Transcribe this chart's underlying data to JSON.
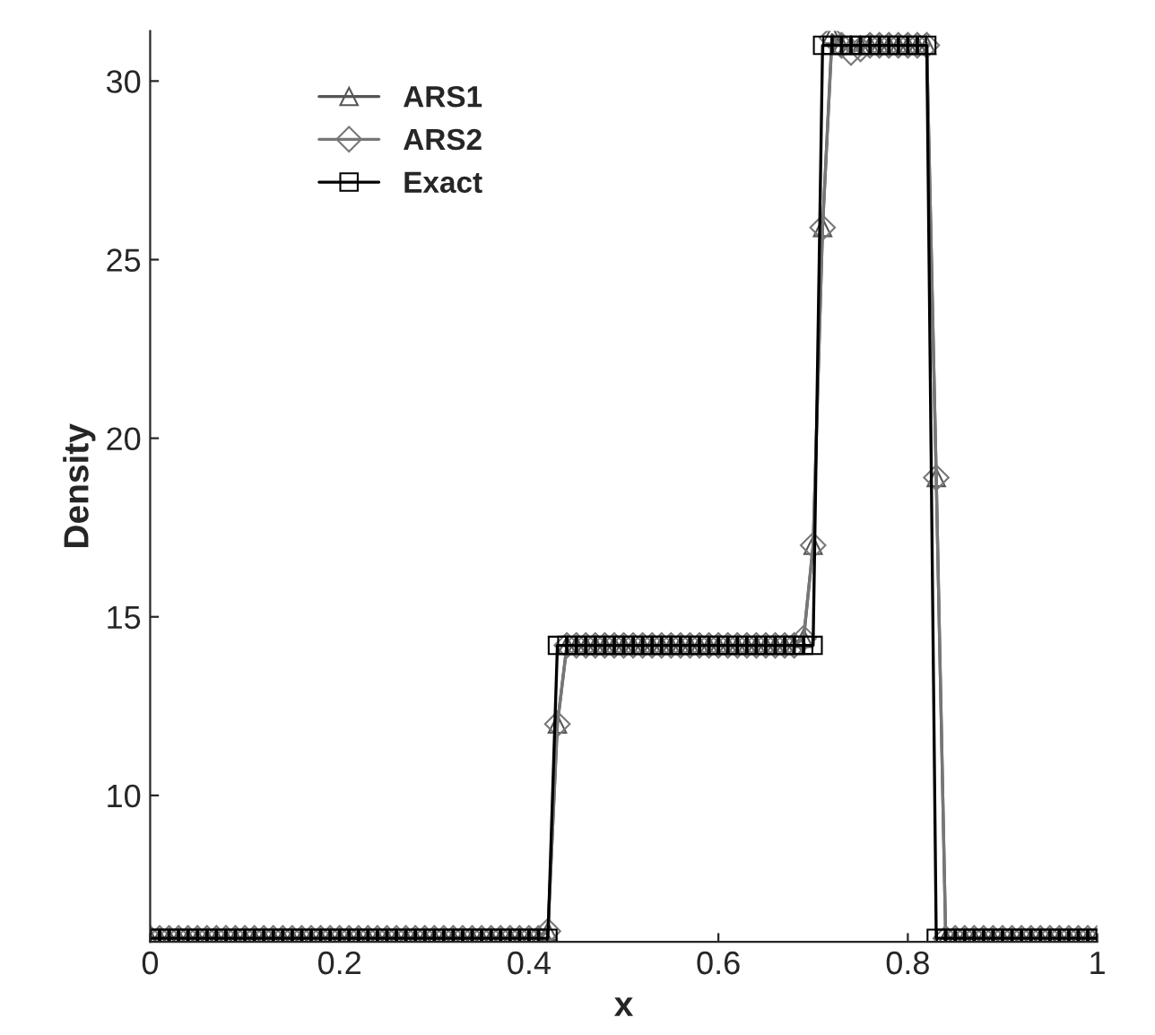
{
  "chart_data": {
    "type": "line",
    "xlabel": "x",
    "ylabel": "Density",
    "x": [
      0,
      0.01,
      0.02,
      0.03,
      0.04,
      0.05,
      0.06,
      0.07,
      0.08,
      0.09,
      0.1,
      0.11,
      0.12,
      0.13,
      0.14,
      0.15,
      0.16,
      0.17,
      0.18,
      0.19,
      0.2,
      0.21,
      0.22,
      0.23,
      0.24,
      0.25,
      0.26,
      0.27,
      0.28,
      0.29,
      0.3,
      0.31,
      0.32,
      0.33,
      0.34,
      0.35,
      0.36,
      0.37,
      0.38,
      0.39,
      0.4,
      0.41,
      0.42,
      0.43,
      0.44,
      0.45,
      0.46,
      0.47,
      0.48,
      0.49,
      0.5,
      0.51,
      0.52,
      0.53,
      0.54,
      0.55,
      0.56,
      0.57,
      0.58,
      0.59,
      0.6,
      0.61,
      0.62,
      0.63,
      0.64,
      0.65,
      0.66,
      0.67,
      0.68,
      0.69,
      0.7,
      0.71,
      0.72,
      0.73,
      0.74,
      0.75,
      0.76,
      0.77,
      0.78,
      0.79,
      0.8,
      0.81,
      0.82,
      0.83,
      0.84,
      0.85,
      0.86,
      0.87,
      0.88,
      0.89,
      0.9,
      0.91,
      0.92,
      0.93,
      0.94,
      0.95,
      0.96,
      0.97,
      0.98,
      0.99,
      1
    ],
    "series": [
      {
        "name": "ARS1",
        "color": "#555555",
        "marker": "triangle",
        "values": [
          6,
          6,
          6,
          6,
          6,
          6,
          6,
          6,
          6,
          6,
          6,
          6,
          6,
          6,
          6,
          6,
          6,
          6,
          6,
          6,
          6,
          6,
          6,
          6,
          6,
          6,
          6,
          6,
          6,
          6,
          6,
          6,
          6,
          6,
          6,
          6,
          6,
          6,
          6,
          6,
          6,
          6,
          6.2,
          12,
          14.2,
          14.2,
          14.2,
          14.2,
          14.2,
          14.2,
          14.2,
          14.2,
          14.2,
          14.2,
          14.2,
          14.2,
          14.2,
          14.2,
          14.2,
          14.2,
          14.2,
          14.2,
          14.2,
          14.2,
          14.2,
          14.2,
          14.2,
          14.2,
          14.2,
          14.4,
          17,
          25.9,
          31.3,
          31,
          31,
          31,
          31,
          31,
          31,
          31,
          31,
          31,
          31,
          18.9,
          6,
          6,
          6,
          6,
          6,
          6,
          6,
          6,
          6,
          6,
          6,
          6,
          6,
          6,
          6,
          6,
          6
        ]
      },
      {
        "name": "ARS2",
        "color": "#777777",
        "marker": "diamond",
        "values": [
          6,
          6,
          6,
          6,
          6,
          6,
          6,
          6,
          6,
          6,
          6,
          6,
          6,
          6,
          6,
          6,
          6,
          6,
          6,
          6,
          6,
          6,
          6,
          6,
          6,
          6,
          6,
          6,
          6,
          6,
          6,
          6,
          6,
          6,
          6,
          6,
          6,
          6,
          6,
          6,
          6,
          6,
          6.2,
          12,
          14.2,
          14.2,
          14.2,
          14.2,
          14.2,
          14.2,
          14.2,
          14.2,
          14.2,
          14.2,
          14.2,
          14.2,
          14.2,
          14.2,
          14.2,
          14.2,
          14.2,
          14.2,
          14.2,
          14.2,
          14.2,
          14.2,
          14.2,
          14.2,
          14.2,
          14.4,
          17,
          25.9,
          31.2,
          31,
          30.8,
          30.9,
          31,
          31,
          31,
          31,
          31,
          31,
          31,
          18.9,
          6,
          6,
          6,
          6,
          6,
          6,
          6,
          6,
          6,
          6,
          6,
          6,
          6,
          6,
          6,
          6,
          6
        ]
      },
      {
        "name": "Exact",
        "color": "#000000",
        "marker": "square",
        "values": [
          6,
          6,
          6,
          6,
          6,
          6,
          6,
          6,
          6,
          6,
          6,
          6,
          6,
          6,
          6,
          6,
          6,
          6,
          6,
          6,
          6,
          6,
          6,
          6,
          6,
          6,
          6,
          6,
          6,
          6,
          6,
          6,
          6,
          6,
          6,
          6,
          6,
          6,
          6,
          6,
          6,
          6,
          6,
          14.2,
          14.2,
          14.2,
          14.2,
          14.2,
          14.2,
          14.2,
          14.2,
          14.2,
          14.2,
          14.2,
          14.2,
          14.2,
          14.2,
          14.2,
          14.2,
          14.2,
          14.2,
          14.2,
          14.2,
          14.2,
          14.2,
          14.2,
          14.2,
          14.2,
          14.2,
          14.2,
          14.2,
          31,
          31,
          31,
          31,
          31,
          31,
          31,
          31,
          31,
          31,
          31,
          31,
          6,
          6,
          6,
          6,
          6,
          6,
          6,
          6,
          6,
          6,
          6,
          6,
          6,
          6,
          6,
          6,
          6,
          6
        ]
      }
    ],
    "xlim": [
      0,
      1
    ],
    "ylim": [
      5.9,
      31.4
    ],
    "xticks": [
      0,
      0.2,
      0.4,
      0.6,
      0.8,
      1
    ],
    "yticks": [
      10,
      15,
      20,
      25,
      30
    ],
    "legend": "top left",
    "grid": false
  }
}
